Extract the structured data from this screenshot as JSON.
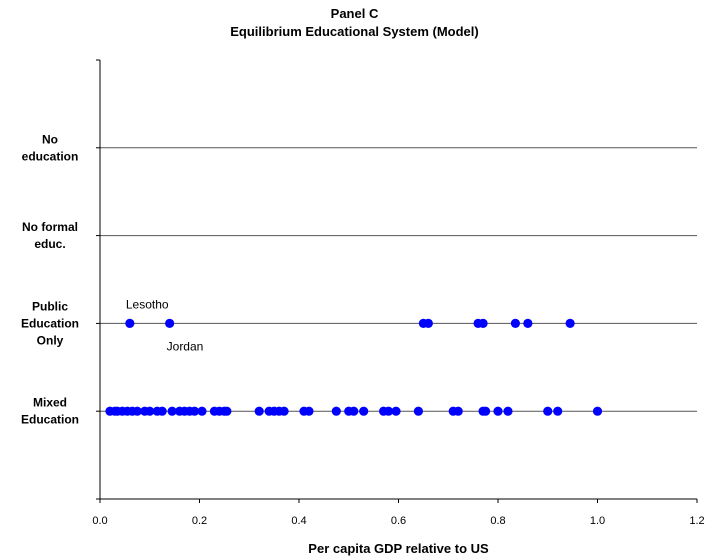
{
  "chart_data": {
    "type": "scatter",
    "title": "Panel C",
    "subtitle": "Equilibrium Educational System (Model)",
    "xlabel": "Per capita GDP relative to US",
    "xlim": [
      0,
      1.2
    ],
    "xticks": [
      "0.0",
      "0.2",
      "0.4",
      "0.6",
      "0.8",
      "1.0",
      "1.2"
    ],
    "categories": [
      {
        "key": "no_edu",
        "label_lines": [
          "No",
          "education"
        ],
        "level": 4
      },
      {
        "key": "no_formal",
        "label_lines": [
          "No formal",
          "educ."
        ],
        "level": 3
      },
      {
        "key": "public",
        "label_lines": [
          "Public",
          "Education",
          "Only"
        ],
        "level": 2
      },
      {
        "key": "mixed",
        "label_lines": [
          "Mixed",
          "Education"
        ],
        "level": 1
      }
    ],
    "ylim": [
      0,
      5
    ],
    "grid": true,
    "marker_color": "#0000ff",
    "series": [
      {
        "category": "public",
        "x": [
          0.06,
          0.14,
          0.65,
          0.66,
          0.76,
          0.77,
          0.835,
          0.86,
          0.945
        ]
      },
      {
        "category": "mixed",
        "x": [
          0.02,
          0.03,
          0.035,
          0.045,
          0.055,
          0.065,
          0.075,
          0.09,
          0.1,
          0.115,
          0.125,
          0.145,
          0.16,
          0.17,
          0.18,
          0.19,
          0.205,
          0.23,
          0.24,
          0.25,
          0.255,
          0.32,
          0.34,
          0.35,
          0.36,
          0.37,
          0.41,
          0.42,
          0.475,
          0.5,
          0.51,
          0.53,
          0.57,
          0.58,
          0.595,
          0.64,
          0.71,
          0.72,
          0.77,
          0.775,
          0.8,
          0.82,
          0.9,
          0.92,
          1.0
        ]
      }
    ],
    "annotations": [
      {
        "text": "Lesotho",
        "x": 0.06,
        "category": "public",
        "position": "above"
      },
      {
        "text": "Jordan",
        "x": 0.14,
        "category": "public",
        "position": "below"
      }
    ]
  }
}
